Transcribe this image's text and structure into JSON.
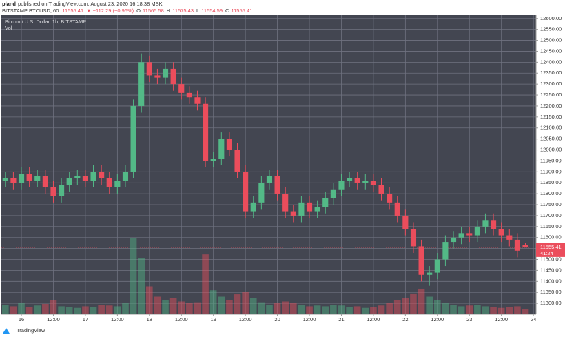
{
  "chart_data": {
    "type": "candlestick",
    "published": "published on TradingView.com, August 23, 2020 16:18:38 MSK",
    "author": "pland",
    "symbol": "BITSTAMP:BTCUSD, 60",
    "change": "▼ −112.29 (−0.96%)",
    "ohlc_labels": [
      "O:",
      "H:",
      "L:",
      "C:"
    ],
    "legend_title": "Bitcoin / U.S. Dollar, 1h, BITSTAMP",
    "volume_label": "Vol",
    "countdown": "41:24",
    "footer": "TradingView",
    "up_color": "#53b987",
    "down_color": "#eb4d5c",
    "x": [
      -6,
      -3,
      0,
      3,
      6,
      9,
      12,
      15,
      18,
      21,
      24,
      27,
      30,
      33,
      36,
      39,
      42,
      45,
      48,
      51,
      54,
      57,
      60,
      63,
      66,
      69,
      72,
      75,
      78,
      81,
      84,
      87,
      90,
      93,
      96,
      99,
      102,
      105,
      108,
      111,
      114,
      117,
      120,
      123,
      126,
      129,
      132,
      135,
      138,
      141,
      144,
      147,
      150,
      153,
      156,
      159,
      162,
      165,
      168,
      171,
      174,
      177,
      180,
      183,
      186,
      189
    ],
    "open": [
      11860,
      11870,
      11850,
      11890,
      11860,
      11880,
      11830,
      11790,
      11840,
      11870,
      11880,
      11860,
      11900,
      11870,
      11830,
      11860,
      11900,
      12200,
      12400,
      12340,
      12330,
      12370,
      12300,
      12260,
      12240,
      12210,
      11950,
      11960,
      12050,
      12000,
      11900,
      11720,
      11760,
      11850,
      11880,
      11800,
      11720,
      11700,
      11760,
      11720,
      11740,
      11780,
      11820,
      11860,
      11870,
      11850,
      11860,
      11840,
      11800,
      11760,
      11700,
      11640,
      11560,
      11430,
      11440,
      11500,
      11580,
      11600,
      11620,
      11610,
      11650,
      11680,
      11640,
      11610,
      11590,
      11565.58
    ],
    "high": [
      11900,
      11900,
      11920,
      11920,
      11910,
      11910,
      11860,
      11870,
      11900,
      11910,
      11910,
      11930,
      11930,
      11900,
      11890,
      11930,
      12230,
      12440,
      12430,
      12370,
      12400,
      12400,
      12330,
      12290,
      12270,
      12240,
      11990,
      12080,
      12080,
      12030,
      11930,
      11790,
      11880,
      11910,
      11910,
      11830,
      11750,
      11790,
      11790,
      11770,
      11810,
      11850,
      11890,
      11900,
      11900,
      11890,
      11890,
      11870,
      11830,
      11790,
      11730,
      11670,
      11590,
      11470,
      11530,
      11610,
      11630,
      11650,
      11650,
      11680,
      11710,
      11710,
      11670,
      11640,
      11620,
      11575.43
    ],
    "low": [
      11830,
      11820,
      11820,
      11830,
      11830,
      11800,
      11760,
      11760,
      11810,
      11840,
      11830,
      11830,
      11840,
      11800,
      11800,
      11830,
      11870,
      12170,
      12310,
      12300,
      12300,
      12270,
      12230,
      12210,
      12180,
      11920,
      11920,
      11930,
      11970,
      11870,
      11690,
      11690,
      11730,
      11820,
      11770,
      11690,
      11670,
      11670,
      11690,
      11690,
      11710,
      11750,
      11790,
      11830,
      11820,
      11820,
      11810,
      11770,
      11730,
      11670,
      11610,
      11530,
      11400,
      11380,
      11410,
      11470,
      11550,
      11570,
      11580,
      11580,
      11620,
      11610,
      11580,
      11560,
      11510,
      11554.59
    ],
    "close": [
      11870,
      11850,
      11890,
      11860,
      11880,
      11830,
      11790,
      11840,
      11870,
      11880,
      11860,
      11900,
      11870,
      11830,
      11860,
      11900,
      12200,
      12400,
      12340,
      12330,
      12370,
      12300,
      12260,
      12240,
      12210,
      11950,
      11960,
      12050,
      12000,
      11900,
      11720,
      11760,
      11850,
      11880,
      11800,
      11720,
      11700,
      11760,
      11720,
      11740,
      11780,
      11820,
      11860,
      11870,
      11850,
      11860,
      11840,
      11800,
      11760,
      11700,
      11640,
      11560,
      11430,
      11440,
      11500,
      11580,
      11600,
      11620,
      11610,
      11650,
      11680,
      11640,
      11610,
      11590,
      11540,
      11555.41
    ],
    "volume": [
      12,
      10,
      14,
      9,
      11,
      13,
      18,
      10,
      9,
      8,
      10,
      9,
      12,
      11,
      10,
      14,
      95,
      70,
      35,
      22,
      18,
      20,
      16,
      14,
      15,
      75,
      30,
      22,
      18,
      25,
      28,
      20,
      15,
      12,
      14,
      16,
      14,
      12,
      10,
      11,
      10,
      12,
      11,
      9,
      10,
      8,
      9,
      11,
      14,
      18,
      20,
      26,
      32,
      22,
      18,
      14,
      12,
      10,
      11,
      12,
      10,
      9,
      8,
      9,
      10,
      6
    ],
    "xlim": [
      -7.5,
      193
    ],
    "xticks": [
      {
        "value": 0,
        "label": "16"
      },
      {
        "value": 12,
        "label": "12:00"
      },
      {
        "value": 24,
        "label": "17"
      },
      {
        "value": 36,
        "label": "12:00"
      },
      {
        "value": 48,
        "label": "18"
      },
      {
        "value": 60,
        "label": "12:00"
      },
      {
        "value": 72,
        "label": "19"
      },
      {
        "value": 84,
        "label": "12:00"
      },
      {
        "value": 96,
        "label": "20"
      },
      {
        "value": 108,
        "label": "12:00"
      },
      {
        "value": 120,
        "label": "21"
      },
      {
        "value": 132,
        "label": "12:00"
      },
      {
        "value": 144,
        "label": "22"
      },
      {
        "value": 156,
        "label": "12:00"
      },
      {
        "value": 168,
        "label": "23"
      },
      {
        "value": 180,
        "label": "12:00"
      },
      {
        "value": 192,
        "label": "24"
      }
    ],
    "ylim": [
      11250,
      12615
    ],
    "yticks": [
      {
        "value": 11300,
        "label": "11300.00"
      },
      {
        "value": 11350,
        "label": "11350.00"
      },
      {
        "value": 11400,
        "label": "11400.00"
      },
      {
        "value": 11450,
        "label": "11450.00"
      },
      {
        "value": 11500,
        "label": "11500.00"
      },
      {
        "value": 11550,
        "label": "11550.00"
      },
      {
        "value": 11600,
        "label": "11600.00"
      },
      {
        "value": 11650,
        "label": "11650.00"
      },
      {
        "value": 11700,
        "label": "11700.00"
      },
      {
        "value": 11750,
        "label": "11750.00"
      },
      {
        "value": 11800,
        "label": "11800.00"
      },
      {
        "value": 11850,
        "label": "11850.00"
      },
      {
        "value": 11900,
        "label": "11900.00"
      },
      {
        "value": 11950,
        "label": "11950.00"
      },
      {
        "value": 12000,
        "label": "12000.00"
      },
      {
        "value": 12050,
        "label": "12050.00"
      },
      {
        "value": 12100,
        "label": "12100.00"
      },
      {
        "value": 12150,
        "label": "12150.00"
      },
      {
        "value": 12200,
        "label": "12200.00"
      },
      {
        "value": 12250,
        "label": "12250.00"
      },
      {
        "value": 12300,
        "label": "12300.00"
      },
      {
        "value": 12350,
        "label": "12350.00"
      },
      {
        "value": 12400,
        "label": "12400.00"
      },
      {
        "value": 12450,
        "label": "12450.00"
      },
      {
        "value": 12500,
        "label": "12500.00"
      },
      {
        "value": 12550,
        "label": "12550.00"
      },
      {
        "value": 12600,
        "label": "12600.00"
      }
    ],
    "grid": true
  }
}
